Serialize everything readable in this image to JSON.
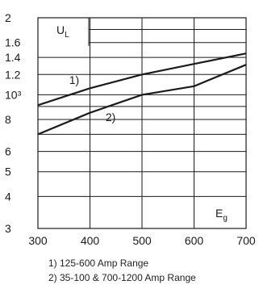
{
  "chart_data": {
    "type": "line",
    "x_axis": {
      "label_base": "E",
      "label_sub": "g",
      "range": [
        300,
        700
      ],
      "tick_values": [
        300,
        400,
        500,
        600,
        700
      ],
      "tick_labels": [
        "300",
        "400",
        "500",
        "600",
        "700"
      ]
    },
    "y_axis": {
      "label_base": "U",
      "label_sub": "L",
      "scale": "log",
      "range": [
        300,
        2000
      ],
      "tick_values": [
        300,
        400,
        500,
        600,
        800,
        1000,
        1200,
        1400,
        1600,
        2000
      ],
      "tick_labels": [
        "3",
        "4",
        "5",
        "6",
        "8",
        "10³",
        "1.2",
        "1.4",
        "1.6",
        "2"
      ],
      "gridlines": [
        300,
        400,
        500,
        600,
        700,
        800,
        900,
        1000,
        1200,
        1400,
        1600,
        1800,
        2000
      ]
    },
    "grid": true,
    "series": [
      {
        "name": "1)",
        "x": [
          300,
          400,
          500,
          600,
          700
        ],
        "y": [
          910,
          1060,
          1200,
          1320,
          1450
        ]
      },
      {
        "name": "2)",
        "x": [
          300,
          400,
          500,
          600,
          700
        ],
        "y": [
          700,
          850,
          1000,
          1080,
          1310
        ]
      }
    ],
    "legend": [
      "1) 125-600 Amp Range",
      "2) 35-100 & 700-1200 Amp Range"
    ]
  },
  "colors": {
    "line": "#1a1a1a",
    "grid": "#1a1a1a",
    "text": "#1a1a1a"
  }
}
